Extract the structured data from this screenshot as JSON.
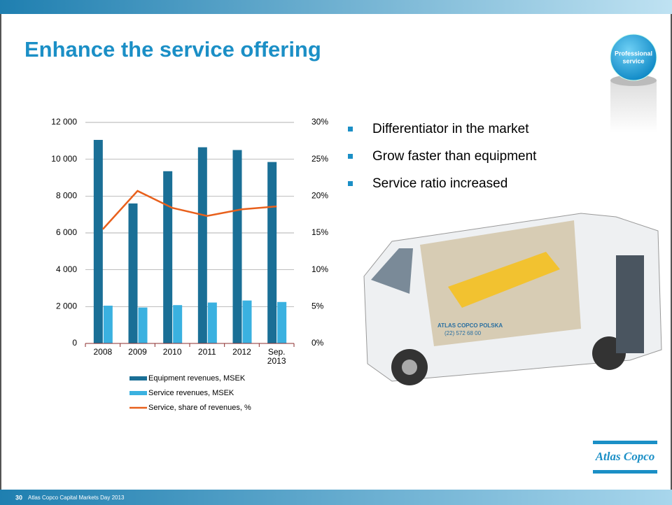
{
  "slide": {
    "title": "Enhance the service offering",
    "badge": [
      "Professional",
      "service"
    ],
    "bullets": [
      "Differentiator in the market",
      "Grow faster than equipment",
      "Service ratio increased"
    ],
    "van_text": [
      "ATLAS COPCO POLSKA",
      "(22) 572 68 00"
    ],
    "logo": "Atlas Copco",
    "page_number": "30",
    "footer": "Atlas Copco Capital Markets Day 2013"
  },
  "chart_data": {
    "type": "bar",
    "categories": [
      "2008",
      "2009",
      "2010",
      "2011",
      "2012",
      "Sep. 2013"
    ],
    "series": [
      {
        "name": "Equipment revenues, MSEK",
        "color": "#1a6f96",
        "values": [
          11050,
          7600,
          9350,
          10650,
          10500,
          9850
        ]
      },
      {
        "name": "Service revenues, MSEK",
        "color": "#3ab1e0",
        "values": [
          2050,
          1950,
          2080,
          2220,
          2330,
          2250
        ]
      },
      {
        "name": "Service, share of revenues, %",
        "color": "#e8601c",
        "type": "line",
        "axis": "y2",
        "values": [
          15.5,
          20.7,
          18.4,
          17.3,
          18.2,
          18.6
        ]
      }
    ],
    "ylim": [
      0,
      12000
    ],
    "yticks": [
      0,
      {
        "value": 2000,
        "label": "2 000"
      },
      {
        "value": 4000,
        "label": "4 000"
      },
      {
        "value": 6000,
        "label": "6 000"
      },
      {
        "value": 8000,
        "label": "8 000"
      },
      {
        "value": 10000,
        "label": "10 000"
      },
      {
        "value": 12000,
        "label": "12 000"
      }
    ],
    "y2lim": [
      0,
      30
    ],
    "y2ticks": [
      {
        "value": 0,
        "label": "0%"
      },
      {
        "value": 5,
        "label": "5%"
      },
      {
        "value": 10,
        "label": "10%"
      },
      {
        "value": 15,
        "label": "15%"
      },
      {
        "value": 20,
        "label": "20%"
      },
      {
        "value": 25,
        "label": "25%"
      },
      {
        "value": 30,
        "label": "30%"
      }
    ],
    "grid": true,
    "legend": "bottom"
  }
}
